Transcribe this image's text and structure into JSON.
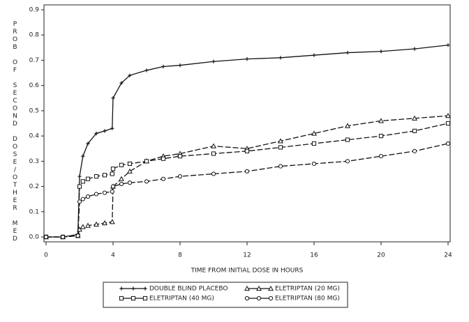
{
  "chart_data": {
    "type": "line",
    "y_label": "PROB OF SECOND DOSE/OTHER MED",
    "x_label": "TIME FROM INITIAL DOSE IN HOURS",
    "x": [
      0,
      1,
      1.9,
      2,
      2.2,
      2.5,
      3,
      3.5,
      3.95,
      4,
      4.5,
      5,
      6,
      7,
      8,
      10,
      12,
      14,
      16,
      18,
      20,
      22,
      24
    ],
    "series": [
      {
        "name": "DOUBLE BLIND PLACEBO",
        "color": "#111111",
        "marker": "plus",
        "values": [
          0,
          0,
          0.01,
          0.24,
          0.32,
          0.37,
          0.41,
          0.42,
          0.43,
          0.55,
          0.61,
          0.64,
          0.66,
          0.675,
          0.68,
          0.695,
          0.705,
          0.71,
          0.72,
          0.73,
          0.735,
          0.745,
          0.76
        ]
      },
      {
        "name": "ELETRIPTAN (20 MG)",
        "color": "#111111",
        "marker": "triangle",
        "values": [
          0,
          0,
          0.005,
          0.03,
          0.04,
          0.045,
          0.05,
          0.055,
          0.06,
          0.2,
          0.23,
          0.26,
          0.3,
          0.32,
          0.33,
          0.36,
          0.35,
          0.38,
          0.41,
          0.44,
          0.46,
          0.47,
          0.48
        ]
      },
      {
        "name": "ELETRIPTAN (40 MG)",
        "color": "#111111",
        "marker": "square",
        "values": [
          0,
          0,
          0.005,
          0.2,
          0.22,
          0.23,
          0.24,
          0.245,
          0.25,
          0.27,
          0.285,
          0.29,
          0.3,
          0.31,
          0.32,
          0.33,
          0.34,
          0.355,
          0.37,
          0.385,
          0.4,
          0.42,
          0.45
        ]
      },
      {
        "name": "ELETRIPTAN (80 MG)",
        "color": "#111111",
        "marker": "circle",
        "values": [
          0,
          0,
          0.005,
          0.14,
          0.15,
          0.16,
          0.17,
          0.175,
          0.18,
          0.2,
          0.21,
          0.215,
          0.22,
          0.23,
          0.24,
          0.25,
          0.26,
          0.28,
          0.29,
          0.3,
          0.32,
          0.34,
          0.37
        ]
      }
    ],
    "xlim": [
      0,
      24
    ],
    "xticks": [
      0,
      4,
      8,
      12,
      16,
      20,
      24
    ],
    "ylim": [
      0,
      0.9
    ],
    "yticks": [
      {
        "value": 0,
        "label": "0.0"
      },
      0.1,
      0.2,
      0.3,
      0.4,
      0.5,
      0.6,
      0.7,
      0.8,
      0.9
    ],
    "grid": false,
    "legend": "bottom"
  }
}
